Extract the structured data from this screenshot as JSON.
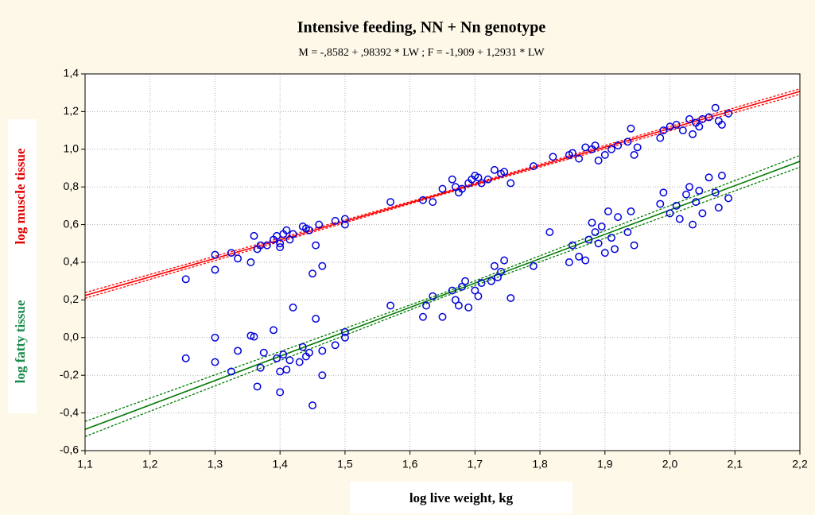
{
  "chart_data": {
    "type": "scatter",
    "title": "Intensive feeding, NN + Nn genotype",
    "subtitle": "M = -,8582 + ,98392 * LW  ;  F = -1,909 + 1,2931 * LW",
    "xlabel": "log live weight, kg",
    "ylabels": [
      {
        "text": "log muscle tissue",
        "color": "#e00000"
      },
      {
        "text": "log fatty tissue",
        "color": "#1a8a4a"
      }
    ],
    "xlim": [
      1.1,
      2.2
    ],
    "xticks": [
      {
        "value": 1.1,
        "label": "1,1"
      },
      {
        "value": 1.2,
        "label": "1,2"
      },
      {
        "value": 1.3,
        "label": "1,3"
      },
      {
        "value": 1.4,
        "label": "1,4"
      },
      {
        "value": 1.5,
        "label": "1,5"
      },
      {
        "value": 1.6,
        "label": "1,6"
      },
      {
        "value": 1.7,
        "label": "1,7"
      },
      {
        "value": 1.8,
        "label": "1,8"
      },
      {
        "value": 1.9,
        "label": "1,9"
      },
      {
        "value": 2.0,
        "label": "2,0"
      },
      {
        "value": 2.1,
        "label": "2,1"
      },
      {
        "value": 2.2,
        "label": "2,2"
      }
    ],
    "ylim": [
      -0.6,
      1.4
    ],
    "yticks": [
      {
        "value": -0.6,
        "label": "-0,6"
      },
      {
        "value": -0.4,
        "label": "-0,4"
      },
      {
        "value": -0.2,
        "label": "-0,2"
      },
      {
        "value": 0,
        "label": "0,0"
      },
      {
        "value": 0.2,
        "label": "0,2"
      },
      {
        "value": 0.4,
        "label": "0,4"
      },
      {
        "value": 0.6,
        "label": "0,6"
      },
      {
        "value": 0.8,
        "label": "0,8"
      },
      {
        "value": 1.0,
        "label": "1,0"
      },
      {
        "value": 1.2,
        "label": "1,2"
      },
      {
        "value": 1.4,
        "label": "1,4"
      }
    ],
    "grid": true,
    "series": [
      {
        "type": "line",
        "color": "#ff0000",
        "dash": false,
        "x": [
          1.1,
          1.65,
          2.2
        ],
        "values": [
          0.224,
          0.765,
          1.307
        ]
      },
      {
        "type": "line",
        "color": "#ff0000",
        "dash": true,
        "x": [
          1.1,
          1.65,
          2.2
        ],
        "values": [
          0.239,
          0.77,
          1.321
        ]
      },
      {
        "type": "line",
        "color": "#ff0000",
        "dash": true,
        "x": [
          1.1,
          1.65,
          2.2
        ],
        "values": [
          0.209,
          0.76,
          1.292
        ]
      },
      {
        "type": "line",
        "color": "#007a00",
        "dash": false,
        "x": [
          1.1,
          1.65,
          2.2
        ],
        "values": [
          -0.487,
          0.225,
          0.936
        ]
      },
      {
        "type": "line",
        "color": "#007a00",
        "dash": true,
        "x": [
          1.1,
          1.65,
          2.2
        ],
        "values": [
          -0.445,
          0.235,
          0.967
        ]
      },
      {
        "type": "line",
        "color": "#007a00",
        "dash": true,
        "x": [
          1.1,
          1.65,
          2.2
        ],
        "values": [
          -0.525,
          0.214,
          0.905
        ]
      },
      {
        "type": "scatter",
        "color": "#0000dd",
        "x": [
          1.255,
          1.3,
          1.3,
          1.325,
          1.335,
          1.355,
          1.36,
          1.365,
          1.37,
          1.38,
          1.39,
          1.395,
          1.4,
          1.4,
          1.405,
          1.41,
          1.415,
          1.42,
          1.435,
          1.44,
          1.445,
          1.45,
          1.455,
          1.46,
          1.465,
          1.485,
          1.5,
          1.5,
          1.57,
          1.62,
          1.635,
          1.65,
          1.665,
          1.67,
          1.675,
          1.68,
          1.69,
          1.695,
          1.7,
          1.705,
          1.71,
          1.72,
          1.73,
          1.74,
          1.745,
          1.755,
          1.79,
          1.82,
          1.845,
          1.85,
          1.86,
          1.87,
          1.88,
          1.885,
          1.89,
          1.9,
          1.91,
          1.92,
          1.935,
          1.94,
          1.945,
          1.95,
          1.985,
          1.99,
          2.0,
          2.01,
          2.02,
          2.03,
          2.035,
          2.04,
          2.045,
          2.05,
          2.06,
          2.07,
          2.075,
          2.08,
          2.09
        ],
        "values": [
          0.31,
          0.44,
          0.36,
          0.45,
          0.42,
          0.4,
          0.54,
          0.47,
          0.49,
          0.49,
          0.52,
          0.54,
          0.5,
          0.48,
          0.55,
          0.57,
          0.52,
          0.55,
          0.59,
          0.58,
          0.57,
          0.34,
          0.49,
          0.6,
          0.38,
          0.62,
          0.63,
          0.6,
          0.72,
          0.73,
          0.72,
          0.79,
          0.84,
          0.8,
          0.77,
          0.79,
          0.82,
          0.84,
          0.86,
          0.85,
          0.82,
          0.84,
          0.89,
          0.87,
          0.88,
          0.82,
          0.91,
          0.96,
          0.97,
          0.98,
          0.95,
          1.01,
          1.0,
          1.02,
          0.94,
          0.97,
          1.0,
          1.02,
          1.04,
          1.11,
          0.97,
          1.01,
          1.06,
          1.1,
          1.12,
          1.13,
          1.1,
          1.16,
          1.08,
          1.14,
          1.12,
          1.16,
          1.17,
          1.22,
          1.15,
          1.13,
          1.19
        ]
      },
      {
        "type": "scatter",
        "color": "#0000dd",
        "x": [
          1.255,
          1.3,
          1.3,
          1.325,
          1.335,
          1.355,
          1.36,
          1.365,
          1.37,
          1.375,
          1.39,
          1.395,
          1.4,
          1.4,
          1.405,
          1.41,
          1.415,
          1.42,
          1.43,
          1.435,
          1.44,
          1.445,
          1.45,
          1.455,
          1.465,
          1.465,
          1.485,
          1.5,
          1.5,
          1.57,
          1.62,
          1.625,
          1.635,
          1.65,
          1.665,
          1.67,
          1.675,
          1.68,
          1.685,
          1.69,
          1.7,
          1.705,
          1.71,
          1.725,
          1.73,
          1.735,
          1.74,
          1.745,
          1.755,
          1.79,
          1.815,
          1.845,
          1.85,
          1.86,
          1.87,
          1.875,
          1.88,
          1.885,
          1.89,
          1.895,
          1.9,
          1.905,
          1.91,
          1.915,
          1.92,
          1.935,
          1.94,
          1.945,
          1.985,
          1.99,
          2.0,
          2.01,
          2.015,
          2.025,
          2.03,
          2.035,
          2.04,
          2.045,
          2.05,
          2.06,
          2.07,
          2.075,
          2.08,
          2.09
        ],
        "values": [
          -0.11,
          0.0,
          -0.13,
          -0.18,
          -0.07,
          0.01,
          0.005,
          -0.26,
          -0.16,
          -0.08,
          0.04,
          -0.11,
          -0.29,
          -0.18,
          -0.09,
          -0.17,
          -0.12,
          0.16,
          -0.13,
          -0.05,
          -0.1,
          -0.08,
          -0.36,
          0.1,
          -0.2,
          -0.07,
          -0.04,
          0.03,
          0.0,
          0.17,
          0.11,
          0.17,
          0.22,
          0.11,
          0.25,
          0.2,
          0.17,
          0.27,
          0.3,
          0.16,
          0.25,
          0.22,
          0.29,
          0.3,
          0.38,
          0.32,
          0.35,
          0.41,
          0.21,
          0.38,
          0.56,
          0.4,
          0.49,
          0.43,
          0.41,
          0.52,
          0.61,
          0.56,
          0.5,
          0.59,
          0.45,
          0.67,
          0.53,
          0.47,
          0.64,
          0.56,
          0.67,
          0.49,
          0.71,
          0.77,
          0.66,
          0.7,
          0.63,
          0.76,
          0.8,
          0.6,
          0.72,
          0.78,
          0.66,
          0.85,
          0.77,
          0.69,
          0.86,
          0.74
        ]
      }
    ]
  }
}
